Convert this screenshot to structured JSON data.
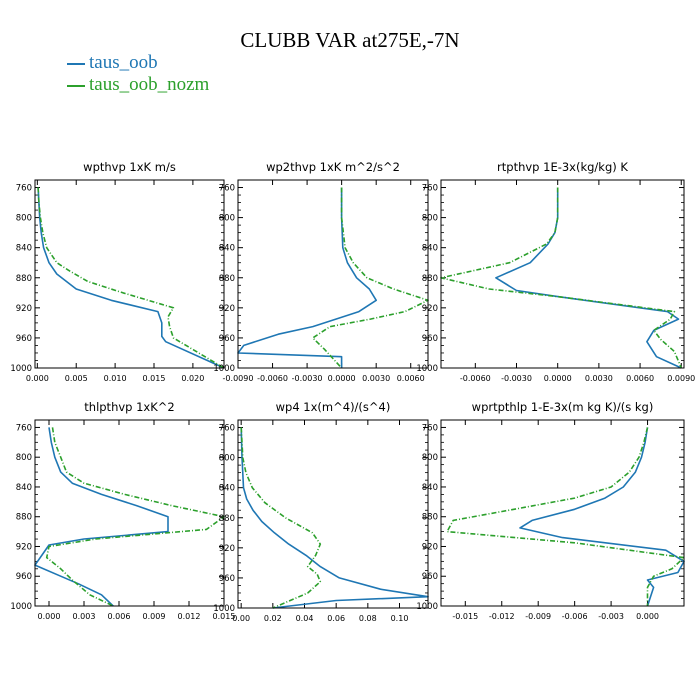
{
  "title": "CLUBB VAR at275E,-7N",
  "legend": [
    {
      "label": "taus_oob",
      "color": "#1f77b4"
    },
    {
      "label": "taus_oob_nozm",
      "color": "#2ca02c"
    }
  ],
  "chart_data": [
    {
      "type": "line",
      "title": "wpthvp  1xK m/s",
      "xlim": [
        -0.0003,
        0.024
      ],
      "ylim": [
        1000,
        750
      ],
      "xticks": [
        0.0,
        0.005,
        0.01,
        0.015,
        0.02
      ],
      "xtick_labels": [
        "0.000",
        "0.005",
        "0.010",
        "0.015",
        "0.020"
      ],
      "yticks": [
        760,
        800,
        840,
        880,
        920,
        960,
        1000
      ],
      "series": [
        {
          "name": "taus_oob",
          "color": "#1f77b4",
          "dash": false,
          "x": [
            0.0001,
            0.0002,
            0.0003,
            0.0005,
            0.0008,
            0.0015,
            0.0025,
            0.005,
            0.0095,
            0.0155,
            0.016,
            0.016,
            0.0165,
            0.024
          ],
          "y": [
            760,
            780,
            800,
            820,
            840,
            860,
            875,
            895,
            910,
            925,
            940,
            958,
            965,
            1000
          ]
        },
        {
          "name": "taus_oob_nozm",
          "color": "#2ca02c",
          "dash": true,
          "x": [
            0.0001,
            0.0002,
            0.0004,
            0.0007,
            0.0012,
            0.0025,
            0.004,
            0.0065,
            0.011,
            0.0175,
            0.0168,
            0.017,
            0.0175,
            0.024
          ],
          "y": [
            760,
            780,
            800,
            820,
            840,
            860,
            870,
            885,
            900,
            920,
            932,
            945,
            960,
            1000
          ]
        }
      ]
    },
    {
      "type": "line",
      "title": "wp2thvp  1xK m^2/s^2",
      "xlim": [
        -0.009,
        0.0075
      ],
      "ylim": [
        1000,
        750
      ],
      "xticks": [
        -0.009,
        -0.006,
        -0.003,
        0.0,
        0.003,
        0.006
      ],
      "xtick_labels": [
        "-0.0090",
        "-0.0060",
        "-0.0030",
        "0.0000",
        "0.0030",
        "0.0060"
      ],
      "yticks": [
        760,
        800,
        840,
        880,
        920,
        960,
        1000
      ],
      "series": [
        {
          "name": "taus_oob",
          "color": "#1f77b4",
          "dash": false,
          "x": [
            0.0,
            0.0,
            0.0001,
            0.0005,
            0.0013,
            0.0024,
            0.003,
            0.0015,
            -0.0005,
            -0.0025,
            -0.0055,
            -0.0085,
            -0.009,
            0.0,
            0.0
          ],
          "y": [
            760,
            800,
            840,
            860,
            880,
            895,
            910,
            925,
            935,
            945,
            955,
            970,
            980,
            985,
            1000
          ]
        },
        {
          "name": "taus_oob_nozm",
          "color": "#2ca02c",
          "dash": true,
          "x": [
            0.0,
            0.0,
            0.0003,
            0.001,
            0.0022,
            0.0045,
            0.0075,
            0.0055,
            0.0025,
            -0.001,
            -0.0025,
            -0.0015,
            0.0
          ],
          "y": [
            760,
            800,
            840,
            860,
            880,
            895,
            910,
            925,
            935,
            945,
            960,
            975,
            1000
          ]
        }
      ]
    },
    {
      "type": "line",
      "title": "rtpthvp  1E-3x(kg/kg) K",
      "xlim": [
        -0.0085,
        0.0092
      ],
      "ylim": [
        1000,
        750
      ],
      "xticks": [
        -0.006,
        -0.003,
        0.0,
        0.003,
        0.006,
        0.009
      ],
      "xtick_labels": [
        "-0.0060",
        "-0.0030",
        "0.0000",
        "0.0030",
        "0.0060",
        "0.0090"
      ],
      "yticks": [
        760,
        800,
        840,
        880,
        920,
        960,
        1000
      ],
      "series": [
        {
          "name": "taus_oob",
          "color": "#1f77b4",
          "dash": false,
          "x": [
            0.0,
            0.0,
            -0.0002,
            -0.0007,
            -0.002,
            -0.0045,
            -0.003,
            0.0,
            0.008,
            0.0088,
            0.007,
            0.0065,
            0.0072,
            0.009
          ],
          "y": [
            760,
            800,
            820,
            835,
            860,
            880,
            897,
            905,
            925,
            935,
            950,
            965,
            985,
            1000
          ]
        },
        {
          "name": "taus_oob_nozm",
          "color": "#2ca02c",
          "dash": true,
          "x": [
            0.0,
            0.0,
            -0.0002,
            -0.0008,
            -0.0035,
            -0.0085,
            -0.005,
            0.0,
            0.0085,
            0.0082,
            0.007,
            0.0075,
            0.0085,
            0.009
          ],
          "y": [
            760,
            800,
            820,
            835,
            860,
            880,
            895,
            905,
            925,
            935,
            950,
            962,
            978,
            1000
          ]
        }
      ]
    },
    {
      "type": "line",
      "title": "thlpthvp  1xK^2",
      "xlim": [
        -0.0012,
        0.015
      ],
      "ylim": [
        1000,
        750
      ],
      "xticks": [
        0.0,
        0.003,
        0.006,
        0.009,
        0.012,
        0.015
      ],
      "xtick_labels": [
        "0.000",
        "0.003",
        "0.006",
        "0.009",
        "0.012",
        "0.015"
      ],
      "yticks": [
        760,
        800,
        840,
        880,
        920,
        960,
        1000
      ],
      "series": [
        {
          "name": "taus_oob",
          "color": "#1f77b4",
          "dash": false,
          "x": [
            0.0,
            0.0002,
            0.0005,
            0.001,
            0.002,
            0.0045,
            0.0075,
            0.0102,
            0.0102,
            0.003,
            0.0,
            -0.0012,
            0.001,
            0.0025,
            0.0045,
            0.0055
          ],
          "y": [
            760,
            780,
            800,
            820,
            835,
            850,
            865,
            880,
            900,
            910,
            918,
            945,
            960,
            970,
            985,
            1000
          ]
        },
        {
          "name": "taus_oob_nozm",
          "color": "#2ca02c",
          "dash": true,
          "x": [
            0.0003,
            0.0005,
            0.001,
            0.0015,
            0.003,
            0.0065,
            0.0105,
            0.015,
            0.0135,
            0.004,
            0.0,
            -0.0002,
            0.001,
            0.002,
            0.0035,
            0.0055
          ],
          "y": [
            760,
            780,
            800,
            820,
            835,
            850,
            865,
            880,
            897,
            910,
            920,
            935,
            950,
            965,
            985,
            1000
          ]
        }
      ]
    },
    {
      "type": "line",
      "title": "wp4  1x(m^4)/(s^4)",
      "xlim": [
        -0.002,
        0.118
      ],
      "ylim": [
        1000,
        750
      ],
      "xticks": [
        0.0,
        0.02,
        0.04,
        0.06,
        0.08,
        0.1
      ],
      "xtick_labels": [
        "0.00",
        "0.02",
        "0.04",
        "0.06",
        "0.08",
        "0.10"
      ],
      "yticks": [
        760,
        800,
        840,
        880,
        920,
        960,
        1000
      ],
      "series": [
        {
          "name": "taus_oob",
          "color": "#1f77b4",
          "dash": false,
          "x": [
            0.0,
            0.0005,
            0.0015,
            0.0035,
            0.0075,
            0.013,
            0.021,
            0.03,
            0.041,
            0.05,
            0.062,
            0.088,
            0.118,
            0.06,
            0.02
          ],
          "y": [
            760,
            800,
            840,
            855,
            870,
            885,
            900,
            915,
            930,
            945,
            960,
            975,
            985,
            990,
            1000
          ]
        },
        {
          "name": "taus_oob_nozm",
          "color": "#2ca02c",
          "dash": true,
          "x": [
            0.0,
            0.001,
            0.003,
            0.007,
            0.015,
            0.028,
            0.045,
            0.05,
            0.047,
            0.042,
            0.048,
            0.05,
            0.042,
            0.02
          ],
          "y": [
            760,
            800,
            820,
            840,
            860,
            880,
            900,
            915,
            930,
            945,
            955,
            965,
            980,
            1000
          ]
        }
      ]
    },
    {
      "type": "line",
      "title": "wprtpthlp  1-E-3x(m kg K)/(s kg)",
      "xlim": [
        -0.017,
        0.003
      ],
      "ylim": [
        1000,
        750
      ],
      "xticks": [
        -0.015,
        -0.012,
        -0.009,
        -0.006,
        -0.003,
        0.0
      ],
      "xtick_labels": [
        "-0.015",
        "-0.012",
        "-0.009",
        "-0.006",
        "-0.003",
        "0.000"
      ],
      "yticks": [
        760,
        800,
        840,
        880,
        920,
        960,
        1000
      ],
      "series": [
        {
          "name": "taus_oob",
          "color": "#1f77b4",
          "dash": false,
          "x": [
            0.0,
            -0.0002,
            -0.0005,
            -0.001,
            -0.002,
            -0.0035,
            -0.006,
            -0.0095,
            -0.0105,
            -0.007,
            0.0015,
            0.003,
            0.0025,
            0.0,
            0.0005,
            0.0
          ],
          "y": [
            760,
            780,
            800,
            820,
            840,
            855,
            870,
            885,
            895,
            908,
            925,
            940,
            955,
            965,
            975,
            1000
          ]
        },
        {
          "name": "taus_oob_nozm",
          "color": "#2ca02c",
          "dash": true,
          "x": [
            0.0,
            -0.0003,
            -0.0007,
            -0.0015,
            -0.003,
            -0.006,
            -0.011,
            -0.016,
            -0.0165,
            -0.006,
            0.003,
            0.002,
            0.0005,
            0.0,
            0.0
          ],
          "y": [
            760,
            780,
            800,
            820,
            840,
            855,
            870,
            885,
            900,
            915,
            935,
            950,
            960,
            975,
            1000
          ]
        }
      ]
    }
  ]
}
